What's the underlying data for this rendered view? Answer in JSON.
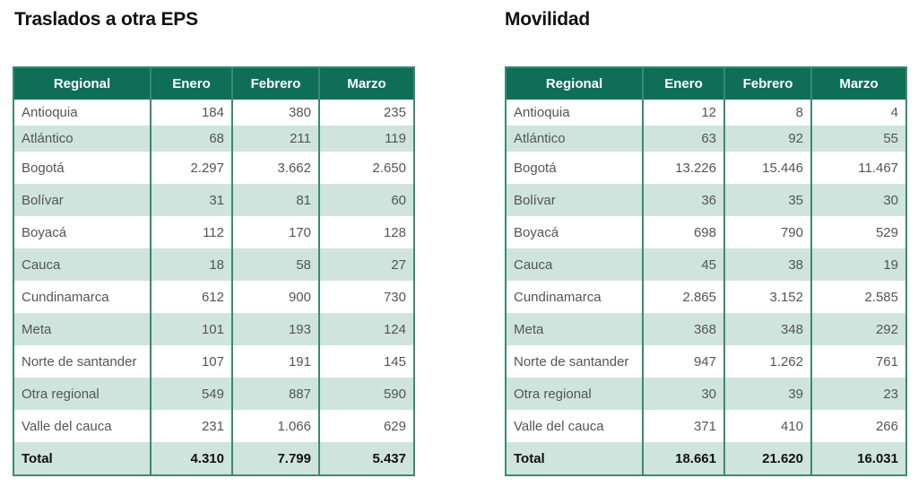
{
  "tables": [
    {
      "title": "Traslados a otra EPS",
      "headers": [
        "Regional",
        "Enero",
        "Febrero",
        "Marzo"
      ],
      "rows": [
        [
          "Antioquia",
          "184",
          "380",
          "235"
        ],
        [
          "Atlántico",
          "68",
          "211",
          "119"
        ],
        [
          "Bogotá",
          "2.297",
          "3.662",
          "2.650"
        ],
        [
          "Bolívar",
          "31",
          "81",
          "60"
        ],
        [
          "Boyacá",
          "112",
          "170",
          "128"
        ],
        [
          "Cauca",
          "18",
          "58",
          "27"
        ],
        [
          "Cundinamarca",
          "612",
          "900",
          "730"
        ],
        [
          "Meta",
          "101",
          "193",
          "124"
        ],
        [
          "Norte de santander",
          "107",
          "191",
          "145"
        ],
        [
          "Otra regional",
          "549",
          "887",
          "590"
        ],
        [
          "Valle del cauca",
          "231",
          "1.066",
          "629"
        ]
      ],
      "total": [
        "Total",
        "4.310",
        "7.799",
        "5.437"
      ]
    },
    {
      "title": "Movilidad",
      "headers": [
        "Regional",
        "Enero",
        "Febrero",
        "Marzo"
      ],
      "rows": [
        [
          "Antioquia",
          "12",
          "8",
          "4"
        ],
        [
          "Atlántico",
          "63",
          "92",
          "55"
        ],
        [
          "Bogotá",
          "13.226",
          "15.446",
          "11.467"
        ],
        [
          "Bolívar",
          "36",
          "35",
          "30"
        ],
        [
          "Boyacá",
          "698",
          "790",
          "529"
        ],
        [
          "Cauca",
          "45",
          "38",
          "19"
        ],
        [
          "Cundinamarca",
          "2.865",
          "3.152",
          "2.585"
        ],
        [
          "Meta",
          "368",
          "348",
          "292"
        ],
        [
          "Norte de santander",
          "947",
          "1.262",
          "761"
        ],
        [
          "Otra regional",
          "30",
          "39",
          "23"
        ],
        [
          "Valle del cauca",
          "371",
          "410",
          "266"
        ]
      ],
      "total": [
        "Total",
        "18.661",
        "21.620",
        "16.031"
      ]
    }
  ],
  "colors": {
    "header": "#0f6e56",
    "stripe": "#cfe4dc",
    "border": "#3a8a72"
  }
}
